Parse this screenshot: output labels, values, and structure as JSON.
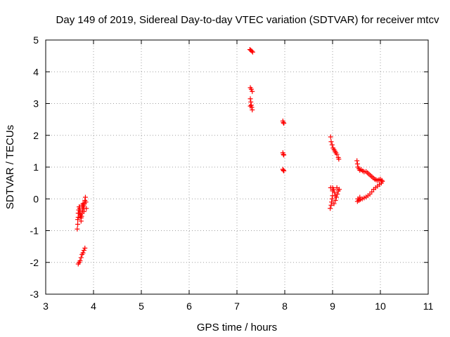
{
  "chart_data": {
    "type": "scatter",
    "title": "Day 149 of 2019, Sidereal Day-to-day VTEC variation (SDTVAR) for receiver mtcv",
    "xlabel": "GPS time / hours",
    "ylabel": "SDTVAR / TECUs",
    "xlim": [
      3,
      11
    ],
    "ylim": [
      -3,
      5
    ],
    "xticks": [
      "3",
      "4",
      "5",
      "6",
      "7",
      "8",
      "9",
      "10",
      "11"
    ],
    "yticks": [
      "-3",
      "-2",
      "-1",
      "0",
      "1",
      "2",
      "3",
      "4",
      "5"
    ],
    "grid": true,
    "marker": "plus",
    "series_color": "#ff0000",
    "series": [
      {
        "name": "SDTVAR",
        "points": [
          [
            3.66,
            -0.95
          ],
          [
            3.67,
            -0.8
          ],
          [
            3.67,
            -0.65
          ],
          [
            3.68,
            -0.58
          ],
          [
            3.68,
            -0.45
          ],
          [
            3.69,
            -0.35
          ],
          [
            3.7,
            -0.25
          ],
          [
            3.71,
            -0.3
          ],
          [
            3.72,
            -0.4
          ],
          [
            3.73,
            -0.5
          ],
          [
            3.74,
            -0.6
          ],
          [
            3.75,
            -0.55
          ],
          [
            3.76,
            -0.45
          ],
          [
            3.77,
            -0.35
          ],
          [
            3.78,
            -0.25
          ],
          [
            3.79,
            -0.2
          ],
          [
            3.8,
            -0.3
          ],
          [
            3.81,
            -0.15
          ],
          [
            3.82,
            -0.05
          ],
          [
            3.83,
            0.05
          ],
          [
            3.84,
            -0.1
          ],
          [
            3.85,
            -0.3
          ],
          [
            3.76,
            -0.2
          ],
          [
            3.74,
            -0.7
          ],
          [
            3.72,
            -0.55
          ],
          [
            3.7,
            -0.45
          ],
          [
            3.78,
            -0.15
          ],
          [
            3.8,
            -0.4
          ],
          [
            3.68,
            -2.05
          ],
          [
            3.7,
            -2.0
          ],
          [
            3.72,
            -1.95
          ],
          [
            3.74,
            -1.85
          ],
          [
            3.76,
            -1.75
          ],
          [
            3.78,
            -1.7
          ],
          [
            3.8,
            -1.62
          ],
          [
            3.82,
            -1.55
          ],
          [
            7.27,
            4.7
          ],
          [
            7.29,
            4.68
          ],
          [
            7.31,
            4.65
          ],
          [
            7.33,
            4.62
          ],
          [
            7.28,
            3.5
          ],
          [
            7.3,
            3.45
          ],
          [
            7.32,
            3.38
          ],
          [
            7.28,
            3.15
          ],
          [
            7.29,
            3.05
          ],
          [
            7.3,
            2.95
          ],
          [
            7.31,
            2.88
          ],
          [
            7.32,
            2.8
          ],
          [
            7.28,
            2.92
          ],
          [
            7.96,
            2.45
          ],
          [
            7.97,
            2.4
          ],
          [
            7.98,
            2.38
          ],
          [
            7.96,
            1.45
          ],
          [
            7.97,
            1.4
          ],
          [
            7.98,
            1.38
          ],
          [
            7.96,
            0.93
          ],
          [
            7.97,
            0.9
          ],
          [
            7.98,
            0.88
          ],
          [
            8.96,
            1.95
          ],
          [
            8.97,
            1.8
          ],
          [
            8.99,
            1.7
          ],
          [
            9.01,
            1.6
          ],
          [
            9.03,
            1.55
          ],
          [
            9.05,
            1.5
          ],
          [
            9.07,
            1.45
          ],
          [
            9.09,
            1.4
          ],
          [
            9.12,
            1.3
          ],
          [
            9.13,
            1.25
          ],
          [
            8.95,
            -0.3
          ],
          [
            8.97,
            -0.2
          ],
          [
            8.98,
            -0.1
          ],
          [
            8.99,
            0.0
          ],
          [
            9.0,
            0.1
          ],
          [
            9.0,
            0.25
          ],
          [
            9.0,
            0.35
          ],
          [
            9.02,
            0.3
          ],
          [
            9.04,
            0.2
          ],
          [
            9.06,
            0.1
          ],
          [
            9.08,
            0.05
          ],
          [
            9.1,
            0.15
          ],
          [
            9.12,
            0.25
          ],
          [
            9.14,
            0.3
          ],
          [
            9.03,
            -0.15
          ],
          [
            9.06,
            -0.05
          ],
          [
            9.09,
            0.35
          ],
          [
            8.96,
            0.35
          ],
          [
            9.51,
            1.2
          ],
          [
            9.52,
            1.1
          ],
          [
            9.53,
            1.0
          ],
          [
            9.55,
            0.95
          ],
          [
            9.57,
            0.9
          ],
          [
            9.6,
            0.92
          ],
          [
            9.63,
            0.88
          ],
          [
            9.66,
            0.85
          ],
          [
            9.7,
            0.86
          ],
          [
            9.73,
            0.82
          ],
          [
            9.76,
            0.78
          ],
          [
            9.79,
            0.74
          ],
          [
            9.82,
            0.7
          ],
          [
            9.85,
            0.66
          ],
          [
            9.88,
            0.62
          ],
          [
            9.91,
            0.6
          ],
          [
            9.94,
            0.58
          ],
          [
            9.97,
            0.6
          ],
          [
            10.0,
            0.62
          ],
          [
            10.03,
            0.58
          ],
          [
            10.04,
            0.55
          ],
          [
            10.02,
            0.5
          ],
          [
            9.98,
            0.45
          ],
          [
            9.94,
            0.4
          ],
          [
            9.9,
            0.35
          ],
          [
            9.86,
            0.3
          ],
          [
            9.82,
            0.22
          ],
          [
            9.78,
            0.15
          ],
          [
            9.74,
            0.1
          ],
          [
            9.7,
            0.06
          ],
          [
            9.66,
            0.03
          ],
          [
            9.62,
            0.0
          ],
          [
            9.58,
            -0.02
          ],
          [
            9.55,
            -0.05
          ],
          [
            9.52,
            -0.08
          ],
          [
            9.53,
            0.0
          ],
          [
            9.57,
            0.05
          ]
        ]
      }
    ]
  }
}
